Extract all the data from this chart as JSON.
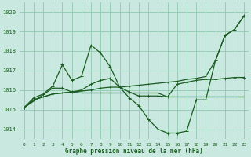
{
  "bg_color": "#c8e8e0",
  "grid_color": "#90c8b0",
  "line_color": "#1a5c20",
  "title": "Graphe pression niveau de la mer (hPa)",
  "ylim": [
    1013.5,
    1020.5
  ],
  "yticks": [
    1014,
    1015,
    1016,
    1017,
    1018,
    1019,
    1020
  ],
  "xlim": [
    -0.5,
    23.5
  ],
  "xticks": [
    0,
    1,
    2,
    3,
    4,
    5,
    6,
    7,
    8,
    9,
    10,
    11,
    12,
    13,
    14,
    15,
    16,
    17,
    18,
    19,
    20,
    21,
    22,
    23
  ],
  "curve1_y": [
    1015.1,
    1015.6,
    1015.8,
    1016.2,
    1017.3,
    1016.5,
    1016.7,
    1018.3,
    1017.9,
    1017.2,
    1016.15,
    1015.6,
    1015.2,
    1014.5,
    1014.0,
    1013.8,
    1013.8,
    1013.9,
    1015.5,
    1015.5,
    1017.5,
    1018.8,
    1019.1,
    1019.8
  ],
  "curve2_y": [
    1015.1,
    1015.5,
    1015.65,
    1015.8,
    1015.85,
    1015.9,
    1015.95,
    1016.0,
    1016.1,
    1016.15,
    1016.15,
    1016.2,
    1016.25,
    1016.3,
    1016.35,
    1016.4,
    1016.45,
    1016.55,
    1016.6,
    1016.7,
    1017.5,
    1018.8,
    1019.1,
    1019.8
  ],
  "curve3_x": [
    0,
    3,
    4,
    5,
    6,
    7,
    8,
    9,
    10,
    11,
    12,
    13,
    14,
    15,
    16,
    17,
    18,
    19,
    20,
    21,
    22,
    23
  ],
  "curve3_y": [
    1015.1,
    1016.1,
    1016.1,
    1015.9,
    1016.0,
    1016.3,
    1016.5,
    1016.6,
    1016.15,
    1015.9,
    1015.7,
    1015.7,
    1015.7,
    1015.65,
    1016.3,
    1016.4,
    1016.5,
    1016.55,
    1016.55,
    1016.6,
    1016.65,
    1016.65
  ],
  "curve4_y": [
    1015.1,
    1015.5,
    1015.65,
    1015.8,
    1015.85,
    1015.9,
    1015.85,
    1015.85,
    1015.85,
    1015.85,
    1015.85,
    1015.85,
    1015.85,
    1015.85,
    1015.85,
    1015.65,
    1015.65,
    1015.65,
    1015.65,
    1015.65,
    1015.65,
    1015.65,
    1015.65,
    1015.65
  ]
}
